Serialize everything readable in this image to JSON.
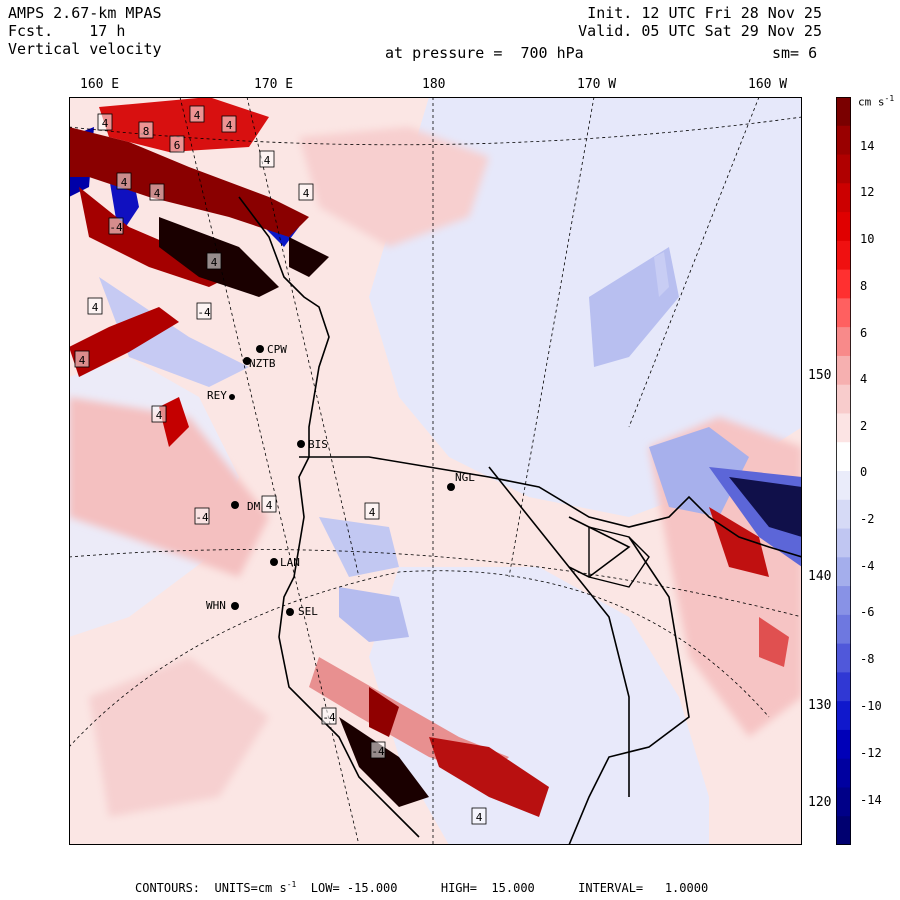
{
  "header": {
    "model": "AMPS 2.67-km MPAS",
    "forecast": "Fcst.    17 h",
    "field": "Vertical velocity",
    "init": "Init. 12 UTC Fri 28 Nov 25",
    "valid": "Valid. 05 UTC Sat 29 Nov 25",
    "level": "at pressure =  700 hPa",
    "smoothing": "sm= 6"
  },
  "longitude_labels": [
    "160 E",
    "170 E",
    "180",
    "170 W",
    "160 W"
  ],
  "latitude_labels": [
    "150 W",
    "140 W",
    "130 W",
    "120 W"
  ],
  "colorbar": {
    "unit": "cm s",
    "unit_exp": "-1",
    "ticks": [
      "14",
      "12",
      "10",
      "8",
      "6",
      "4",
      "2",
      "0",
      "-2",
      "-4",
      "-6",
      "-8",
      "-10",
      "-12",
      "-14"
    ],
    "colors": [
      "#7a0000",
      "#990000",
      "#b00000",
      "#cc0000",
      "#e00000",
      "#f01010",
      "#ff3030",
      "#ff6060",
      "#f88a8a",
      "#f6b0b0",
      "#f8cccc",
      "#fce4e4",
      "#ffffff",
      "#eaecfa",
      "#d6daf6",
      "#c0c6f2",
      "#a4aeec",
      "#8892e6",
      "#6e78e0",
      "#5058da",
      "#3038d4",
      "#1018cc",
      "#0000b8",
      "#0000a0",
      "#000088",
      "#000070"
    ]
  },
  "stations": [
    "CPW",
    "NZTB",
    "REY",
    "BIS",
    "NGL",
    "DM",
    "LAN",
    "WHN",
    "SEL"
  ],
  "contour_labels": [
    "4",
    "8",
    "6",
    "4",
    "4",
    "4",
    "4",
    "4",
    "-4",
    "4",
    "4",
    "4",
    "-4",
    "4",
    "4",
    "4",
    "-4",
    "4",
    "-4",
    "-4",
    "4"
  ],
  "footer": {
    "contours": "CONTOURS:  UNITS=cm s",
    "contours_exp": "-1",
    "rest": "  LOW= -15.000      HIGH=  15.000      INTERVAL=   1.0000"
  }
}
